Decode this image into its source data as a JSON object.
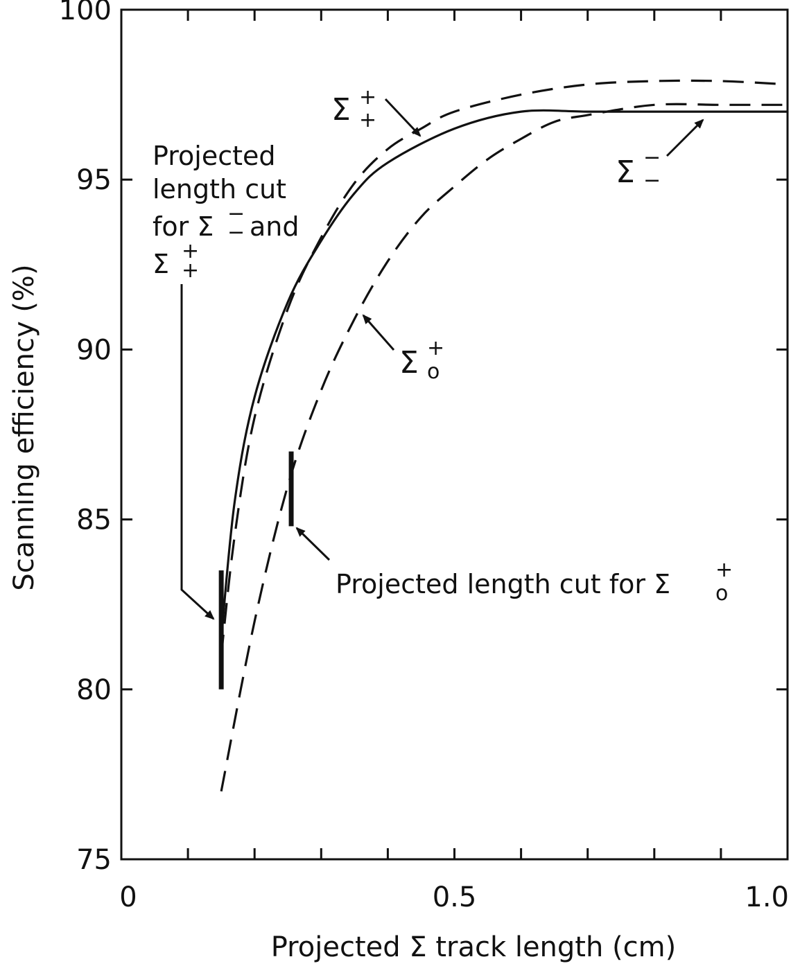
{
  "chart_data": {
    "type": "line",
    "title": "",
    "xlabel": "Projected Σ track length (cm)",
    "ylabel": "Scanning efficiency (%)",
    "xlim": [
      0,
      1.0
    ],
    "ylim": [
      75,
      100
    ],
    "xticks": [
      0,
      0.5,
      1.0
    ],
    "xtick_labels": [
      "0",
      "0.5",
      "1.0"
    ],
    "xminor_ticks": [
      0.1,
      0.2,
      0.3,
      0.4,
      0.6,
      0.7,
      0.8,
      0.9
    ],
    "yticks": [
      75,
      80,
      85,
      90,
      95,
      100
    ],
    "ytick_labels": [
      "75",
      "80",
      "85",
      "90",
      "95",
      "100"
    ],
    "grid": false,
    "legend": "none",
    "series": [
      {
        "style": "solid",
        "x": [
          0.15,
          0.17,
          0.2,
          0.25,
          0.3,
          0.35,
          0.4,
          0.5,
          0.6,
          0.7,
          0.8,
          0.9,
          1.0
        ],
        "y": [
          81.5,
          85.5,
          88.6,
          91.4,
          93.2,
          94.6,
          95.5,
          96.5,
          97.0,
          97.0,
          97.0,
          97.0,
          97.0
        ]
      },
      {
        "style": "dashed",
        "x": [
          0.15,
          0.17,
          0.2,
          0.25,
          0.3,
          0.35,
          0.4,
          0.45,
          0.5,
          0.6,
          0.7,
          0.8,
          0.9,
          1.0
        ],
        "y": [
          81.0,
          84.5,
          88.0,
          91.2,
          93.3,
          94.9,
          95.9,
          96.5,
          97.0,
          97.5,
          97.8,
          97.9,
          97.9,
          97.8
        ]
      },
      {
        "style": "dashed",
        "x": [
          0.15,
          0.2,
          0.25,
          0.3,
          0.35,
          0.4,
          0.45,
          0.5,
          0.55,
          0.6,
          0.65,
          0.7,
          0.8,
          0.9,
          1.0
        ],
        "y": [
          77.0,
          82.0,
          86.0,
          88.8,
          90.9,
          92.6,
          93.9,
          94.8,
          95.6,
          96.2,
          96.7,
          96.9,
          97.2,
          97.2,
          97.2
        ]
      }
    ],
    "cut_markers": [
      {
        "x": 0.15,
        "y_from": 80.0,
        "y_to": 83.5
      },
      {
        "x": 0.255,
        "y_from": 84.8,
        "y_to": 87.0
      }
    ],
    "annotations": [
      {
        "symbol": "Σ",
        "sup": "+",
        "sub": "+"
      },
      {
        "symbol": "Σ",
        "sup": "−",
        "sub": "−"
      },
      {
        "symbol": "Σ",
        "sup": "+",
        "sub": "o"
      },
      {
        "lines": [
          "Projected",
          "length cut",
          "for Σ",
          "and",
          "Σ"
        ],
        "sym1_sup": "−",
        "sym1_sub": "−",
        "sym2_sup": "+",
        "sym2_sub": "+"
      },
      {
        "text": "Projected length cut for Σ",
        "sup": "+",
        "sub": "o"
      }
    ]
  }
}
